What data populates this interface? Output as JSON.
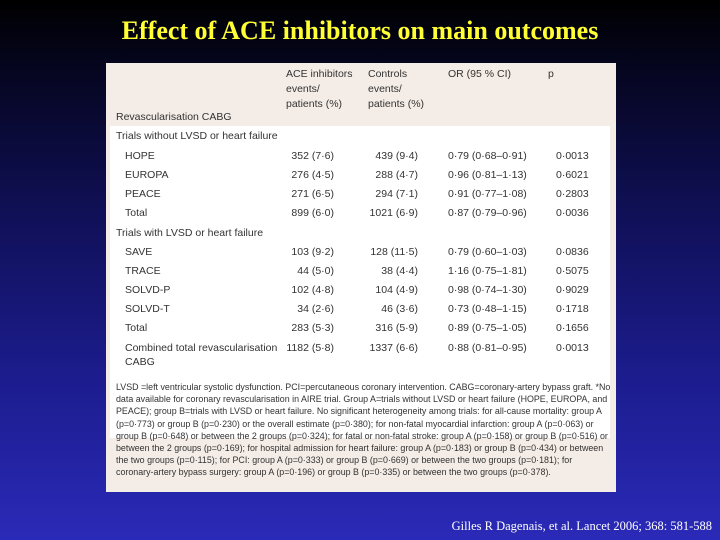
{
  "slide": {
    "title": "Effect of ACE inhibitors on main outcomes",
    "citation": "Gilles R Dagenais, et al. Lancet 2006; 368: 581-588"
  },
  "table": {
    "headers": {
      "ace_line1": "ACE inhibitors",
      "ace_line2": "events/",
      "ace_line3": "patients (%)",
      "ctl_line1": "Controls",
      "ctl_line2": "events/",
      "ctl_line3": "patients (%)",
      "or": "OR (95 % CI)",
      "p": "p"
    },
    "section_label": "Revascularisation CABG",
    "group_a": "Trials without LVSD or heart failure",
    "group_b": "Trials with LVSD or heart failure",
    "rows_a": [
      {
        "name": "HOPE",
        "ace": "352 (7·6)",
        "ctl": "439 (9·4)",
        "or": "0·79 (0·68–0·91)",
        "p": "0·0013"
      },
      {
        "name": "EUROPA",
        "ace": "276 (4·5)",
        "ctl": "288 (4·7)",
        "or": "0·96 (0·81–1·13)",
        "p": "0·6021"
      },
      {
        "name": "PEACE",
        "ace": "271 (6·5)",
        "ctl": "294 (7·1)",
        "or": "0·91 (0·77–1·08)",
        "p": "0·2803"
      },
      {
        "name": "Total",
        "ace": "899 (6·0)",
        "ctl": "1021 (6·9)",
        "or": "0·87 (0·79–0·96)",
        "p": "0·0036"
      }
    ],
    "rows_b": [
      {
        "name": "SAVE",
        "ace": "103 (9·2)",
        "ctl": "128 (11·5)",
        "or": "0·79 (0·60–1·03)",
        "p": "0·0836"
      },
      {
        "name": "TRACE",
        "ace": "44 (5·0)",
        "ctl": "38 (4·4)",
        "or": "1·16 (0·75–1·81)",
        "p": "0·5075"
      },
      {
        "name": "SOLVD-P",
        "ace": "102 (4·8)",
        "ctl": "104 (4·9)",
        "or": "0·98 (0·74–1·30)",
        "p": "0·9029"
      },
      {
        "name": "SOLVD-T",
        "ace": "34 (2·6)",
        "ctl": "46 (3·6)",
        "or": "0·73 (0·48–1·15)",
        "p": "0·1718"
      },
      {
        "name": "Total",
        "ace": "283 (5·3)",
        "ctl": "316 (5·9)",
        "or": "0·89 (0·75–1·05)",
        "p": "0·1656"
      }
    ],
    "combined": {
      "name_line1": "Combined total revascularisation",
      "name_line2": "CABG",
      "ace": "1182 (5·8)",
      "ctl": "1337 (6·6)",
      "or": "0·88 (0·81–0·95)",
      "p": "0·0013"
    },
    "footnote": "LVSD =left ventricular systolic dysfunction. PCI=percutaneous coronary intervention. CABG=coronary-artery bypass graft. *No data available for coronary revascularisation in AIRE trial. Group A=trials without LVSD or heart failure (HOPE, EUROPA, and PEACE); group B=trials with LVSD or heart failure. No significant heterogeneity among trials: for all-cause mortality: group A (p=0·773) or group B (p=0·230) or the overall estimate (p=0·380); for non-fatal myocardial infarction: group A (p=0·063) or group B (p=0·648) or between the 2 groups (p=0·324); for fatal or non-fatal stroke: group A (p=0·158) or group B (p=0·516) or between the 2 groups (p=0·169); for hospital admission for heart failure: group A (p=0·183) or group B (p=0·434) or between the two groups (p=0·115); for PCI: group A (p=0·333) or group B (p=0·669) or between the two groups (p=0·181); for coronary-artery bypass surgery: group A (p=0·196) or group B (p=0·335) or between the two groups (p=0·378)."
  }
}
